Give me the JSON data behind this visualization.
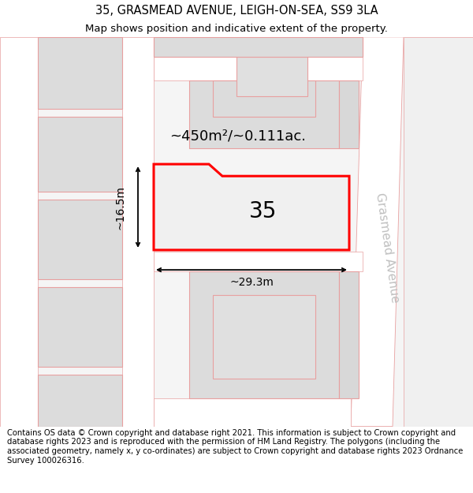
{
  "title": "35, GRASMEAD AVENUE, LEIGH-ON-SEA, SS9 3LA",
  "subtitle": "Map shows position and indicative extent of the property.",
  "footer": "Contains OS data © Crown copyright and database right 2021. This information is subject to Crown copyright and database rights 2023 and is reproduced with the permission of HM Land Registry. The polygons (including the associated geometry, namely x, y co-ordinates) are subject to Crown copyright and database rights 2023 Ordnance Survey 100026316.",
  "background_color": "#ffffff",
  "map_bg": "#f5f5f5",
  "block_fill": "#dcdcdc",
  "block_stroke": "#e8a0a0",
  "road_fill": "#ffffff",
  "road_stroke": "#e8a0a0",
  "highlight_fill": "#f0f0f0",
  "highlight_stroke": "#ff0000",
  "street_label": "Grasmead Avenue",
  "street_label_color": "#c0c0c0",
  "area_label": "~450m²/~0.111ac.",
  "number_label": "35",
  "dim_width": "~29.3m",
  "dim_height": "~16.5m",
  "title_fontsize": 10.5,
  "subtitle_fontsize": 9.5,
  "footer_fontsize": 7.2,
  "annotation_fontsize": 10,
  "area_fontsize": 13,
  "number_fontsize": 20,
  "street_fontsize": 11
}
